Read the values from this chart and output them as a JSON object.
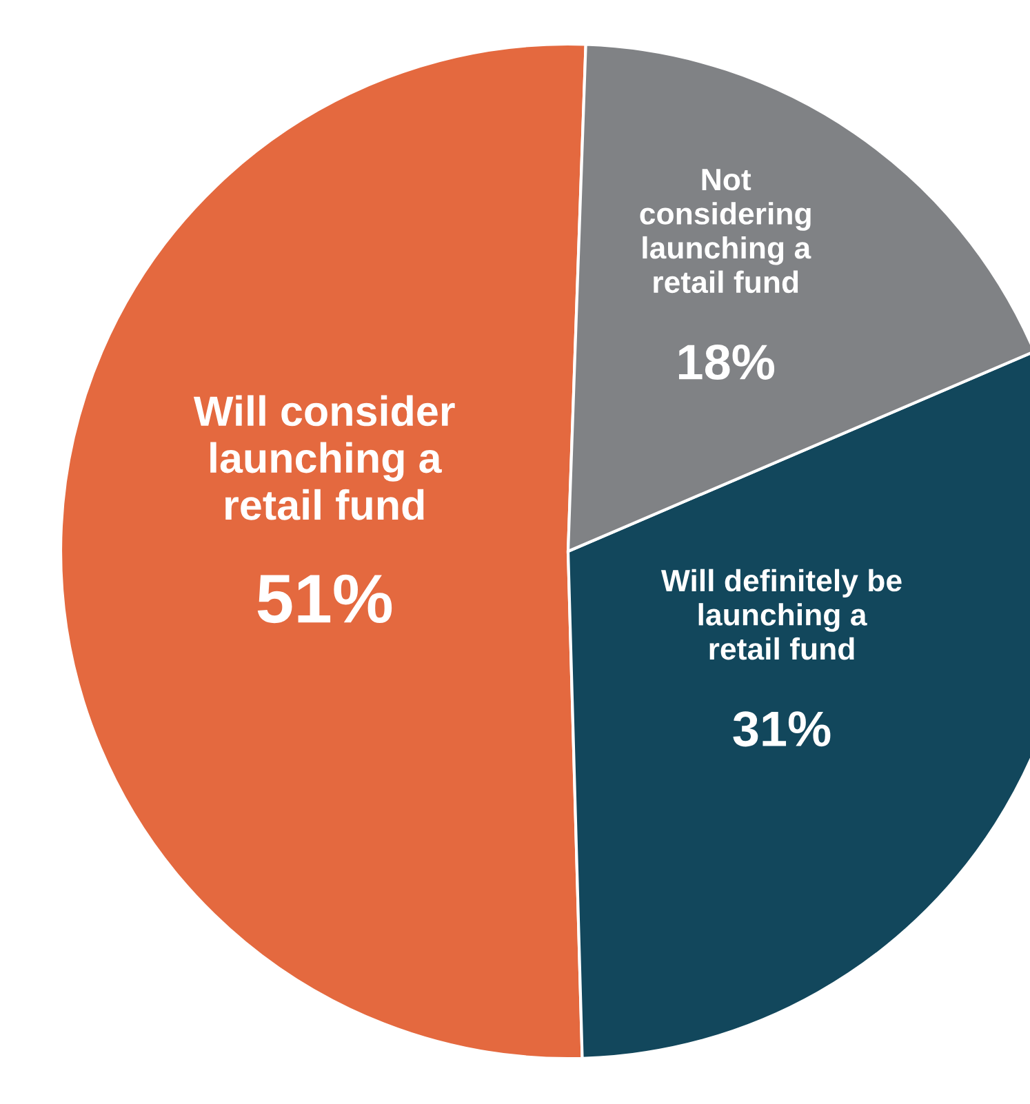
{
  "chart_data": {
    "type": "pie",
    "categories": [
      "Will consider\nlaunching a\nretail fund",
      "Will definitely be\nlaunching a\nretail fund",
      "Not\nconsidering\nlaunching a\nretail fund"
    ],
    "values": [
      51,
      31,
      18
    ],
    "value_labels": [
      "51%",
      "31%",
      "18%"
    ],
    "colors": [
      "#e4693f",
      "#12475c",
      "#808285"
    ]
  }
}
